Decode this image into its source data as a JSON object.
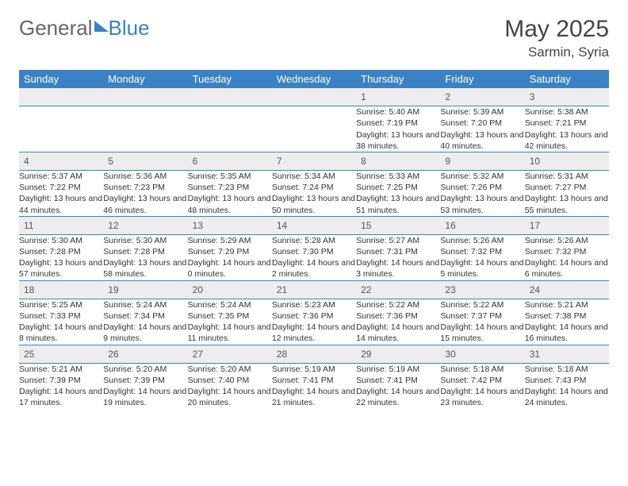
{
  "logo": {
    "general": "General",
    "blue": "Blue"
  },
  "header": {
    "month": "May 2025",
    "location": "Sarmin, Syria"
  },
  "weekdays": [
    "Sunday",
    "Monday",
    "Tuesday",
    "Wednesday",
    "Thursday",
    "Friday",
    "Saturday"
  ],
  "colors": {
    "header_bg": "#3b82c4",
    "header_text": "#ffffff",
    "daynum_bg": "#ededed",
    "rule": "#3b82c4",
    "text": "#333333"
  },
  "layout": {
    "columns": 7,
    "rows": 5,
    "first_weekday_index": 4
  },
  "days": [
    {
      "n": 1,
      "sr": "5:40 AM",
      "ss": "7:19 PM",
      "dl": "13 hours and 38 minutes."
    },
    {
      "n": 2,
      "sr": "5:39 AM",
      "ss": "7:20 PM",
      "dl": "13 hours and 40 minutes."
    },
    {
      "n": 3,
      "sr": "5:38 AM",
      "ss": "7:21 PM",
      "dl": "13 hours and 42 minutes."
    },
    {
      "n": 4,
      "sr": "5:37 AM",
      "ss": "7:22 PM",
      "dl": "13 hours and 44 minutes."
    },
    {
      "n": 5,
      "sr": "5:36 AM",
      "ss": "7:23 PM",
      "dl": "13 hours and 46 minutes."
    },
    {
      "n": 6,
      "sr": "5:35 AM",
      "ss": "7:23 PM",
      "dl": "13 hours and 48 minutes."
    },
    {
      "n": 7,
      "sr": "5:34 AM",
      "ss": "7:24 PM",
      "dl": "13 hours and 50 minutes."
    },
    {
      "n": 8,
      "sr": "5:33 AM",
      "ss": "7:25 PM",
      "dl": "13 hours and 51 minutes."
    },
    {
      "n": 9,
      "sr": "5:32 AM",
      "ss": "7:26 PM",
      "dl": "13 hours and 53 minutes."
    },
    {
      "n": 10,
      "sr": "5:31 AM",
      "ss": "7:27 PM",
      "dl": "13 hours and 55 minutes."
    },
    {
      "n": 11,
      "sr": "5:30 AM",
      "ss": "7:28 PM",
      "dl": "13 hours and 57 minutes."
    },
    {
      "n": 12,
      "sr": "5:30 AM",
      "ss": "7:28 PM",
      "dl": "13 hours and 58 minutes."
    },
    {
      "n": 13,
      "sr": "5:29 AM",
      "ss": "7:29 PM",
      "dl": "14 hours and 0 minutes."
    },
    {
      "n": 14,
      "sr": "5:28 AM",
      "ss": "7:30 PM",
      "dl": "14 hours and 2 minutes."
    },
    {
      "n": 15,
      "sr": "5:27 AM",
      "ss": "7:31 PM",
      "dl": "14 hours and 3 minutes."
    },
    {
      "n": 16,
      "sr": "5:26 AM",
      "ss": "7:32 PM",
      "dl": "14 hours and 5 minutes."
    },
    {
      "n": 17,
      "sr": "5:26 AM",
      "ss": "7:32 PM",
      "dl": "14 hours and 6 minutes."
    },
    {
      "n": 18,
      "sr": "5:25 AM",
      "ss": "7:33 PM",
      "dl": "14 hours and 8 minutes."
    },
    {
      "n": 19,
      "sr": "5:24 AM",
      "ss": "7:34 PM",
      "dl": "14 hours and 9 minutes."
    },
    {
      "n": 20,
      "sr": "5:24 AM",
      "ss": "7:35 PM",
      "dl": "14 hours and 11 minutes."
    },
    {
      "n": 21,
      "sr": "5:23 AM",
      "ss": "7:36 PM",
      "dl": "14 hours and 12 minutes."
    },
    {
      "n": 22,
      "sr": "5:22 AM",
      "ss": "7:36 PM",
      "dl": "14 hours and 14 minutes."
    },
    {
      "n": 23,
      "sr": "5:22 AM",
      "ss": "7:37 PM",
      "dl": "14 hours and 15 minutes."
    },
    {
      "n": 24,
      "sr": "5:21 AM",
      "ss": "7:38 PM",
      "dl": "14 hours and 16 minutes."
    },
    {
      "n": 25,
      "sr": "5:21 AM",
      "ss": "7:39 PM",
      "dl": "14 hours and 17 minutes."
    },
    {
      "n": 26,
      "sr": "5:20 AM",
      "ss": "7:39 PM",
      "dl": "14 hours and 19 minutes."
    },
    {
      "n": 27,
      "sr": "5:20 AM",
      "ss": "7:40 PM",
      "dl": "14 hours and 20 minutes."
    },
    {
      "n": 28,
      "sr": "5:19 AM",
      "ss": "7:41 PM",
      "dl": "14 hours and 21 minutes."
    },
    {
      "n": 29,
      "sr": "5:19 AM",
      "ss": "7:41 PM",
      "dl": "14 hours and 22 minutes."
    },
    {
      "n": 30,
      "sr": "5:18 AM",
      "ss": "7:42 PM",
      "dl": "14 hours and 23 minutes."
    },
    {
      "n": 31,
      "sr": "5:18 AM",
      "ss": "7:43 PM",
      "dl": "14 hours and 24 minutes."
    }
  ],
  "labels": {
    "sunrise": "Sunrise:",
    "sunset": "Sunset:",
    "daylight": "Daylight:"
  }
}
